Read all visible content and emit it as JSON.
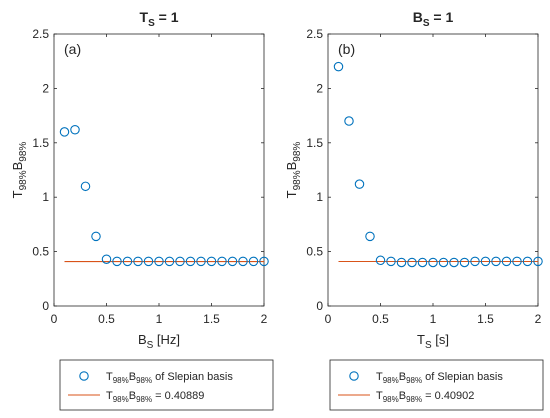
{
  "chart_data": [
    {
      "type": "scatter",
      "panel_label": "(a)",
      "title": {
        "main": "T",
        "sub": "S",
        "suffix": " = 1"
      },
      "xlabel": {
        "main": "B",
        "sub": "S",
        "suffix": " [Hz]"
      },
      "ylabel": {
        "p1": "T",
        "s1": "98%",
        "p2": "B",
        "s2": "98%"
      },
      "xlim": [
        0,
        2
      ],
      "ylim": [
        0,
        2.5
      ],
      "xticks": [
        "0",
        "0.5",
        "1",
        "1.5",
        "2"
      ],
      "yticks": [
        "0",
        "0.5",
        "1",
        "1.5",
        "2",
        "2.5"
      ],
      "x": [
        0.1,
        0.2,
        0.3,
        0.4,
        0.5,
        0.6,
        0.7,
        0.8,
        0.9,
        1.0,
        1.1,
        1.2,
        1.3,
        1.4,
        1.5,
        1.6,
        1.7,
        1.8,
        1.9,
        2.0
      ],
      "y": [
        1.6,
        1.62,
        1.1,
        0.64,
        0.43,
        0.41,
        0.41,
        0.41,
        0.41,
        0.41,
        0.41,
        0.41,
        0.41,
        0.41,
        0.41,
        0.41,
        0.41,
        0.41,
        0.41,
        0.41
      ],
      "hline": {
        "y": 0.40889,
        "x_start": 0.1,
        "x_end": 2.0
      },
      "legend": {
        "scatter": {
          "p1": "T",
          "s1": "98%",
          "p2": "B",
          "s2": "98%",
          "suffix": " of Slepian basis"
        },
        "line": {
          "p1": "T",
          "s1": "98%",
          "p2": "B",
          "s2": "98%",
          "suffix": " = 0.40889"
        }
      }
    },
    {
      "type": "scatter",
      "panel_label": "(b)",
      "title": {
        "main": "B",
        "sub": "S",
        "suffix": " = 1"
      },
      "xlabel": {
        "main": "T",
        "sub": "S",
        "suffix": " [s]"
      },
      "ylabel": {
        "p1": "T",
        "s1": "98%",
        "p2": "B",
        "s2": "98%"
      },
      "xlim": [
        0,
        2
      ],
      "ylim": [
        0,
        2.5
      ],
      "xticks": [
        "0",
        "0.5",
        "1",
        "1.5",
        "2"
      ],
      "yticks": [
        "0",
        "0.5",
        "1",
        "1.5",
        "2",
        "2.5"
      ],
      "x": [
        0.1,
        0.2,
        0.3,
        0.4,
        0.5,
        0.6,
        0.7,
        0.8,
        0.9,
        1.0,
        1.1,
        1.2,
        1.3,
        1.4,
        1.5,
        1.6,
        1.7,
        1.8,
        1.9,
        2.0
      ],
      "y": [
        2.2,
        1.7,
        1.12,
        0.64,
        0.42,
        0.41,
        0.4,
        0.4,
        0.4,
        0.4,
        0.4,
        0.4,
        0.4,
        0.41,
        0.41,
        0.41,
        0.41,
        0.41,
        0.41,
        0.41
      ],
      "hline": {
        "y": 0.40902,
        "x_start": 0.1,
        "x_end": 2.0
      },
      "legend": {
        "scatter": {
          "p1": "T",
          "s1": "98%",
          "p2": "B",
          "s2": "98%",
          "suffix": " of Slepian basis"
        },
        "line": {
          "p1": "T",
          "s1": "98%",
          "p2": "B",
          "s2": "98%",
          "suffix": " = 0.40902"
        }
      }
    }
  ],
  "colors": {
    "marker": "#0072BD",
    "line": "#D95319",
    "axis": "#262626"
  }
}
